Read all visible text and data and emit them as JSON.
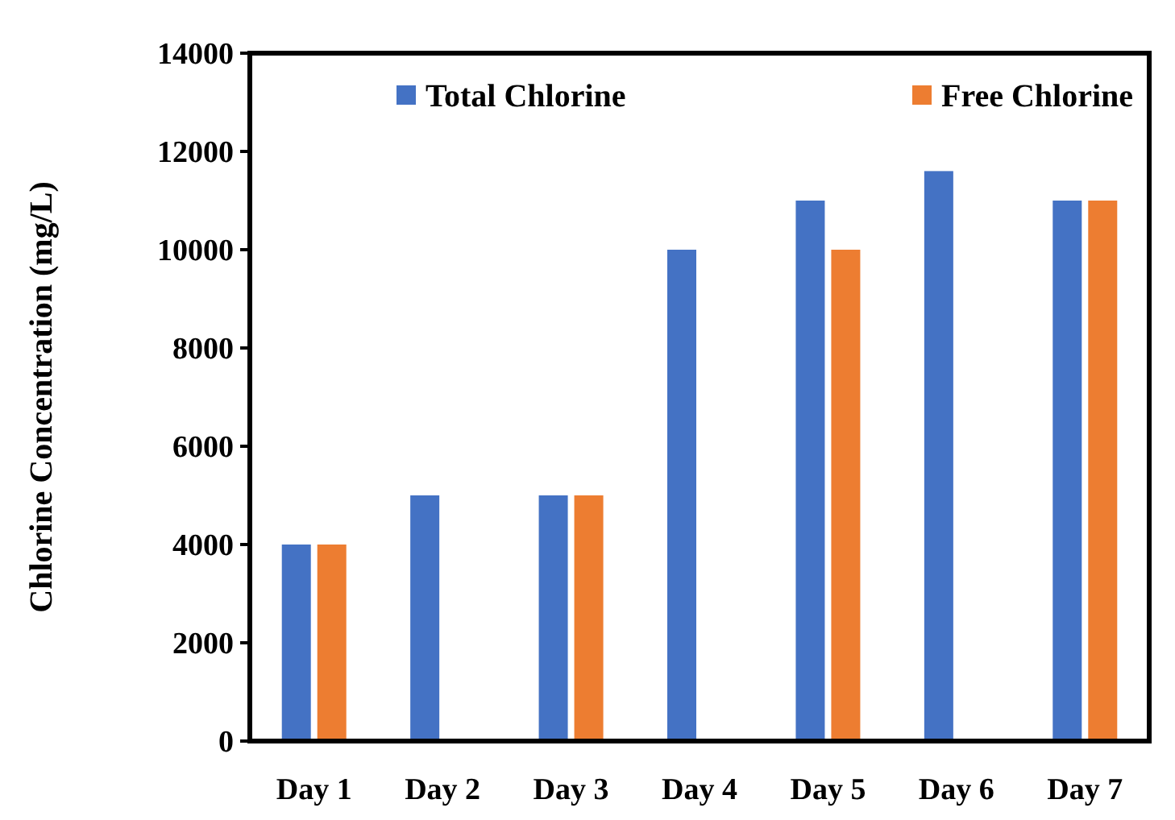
{
  "chart_data": {
    "type": "bar",
    "ylabel": "Chlorine Concentration (mg/L)",
    "categories": [
      "Day 1",
      "Day 2",
      "Day 3",
      "Day 4",
      "Day 5",
      "Day 6",
      "Day 7"
    ],
    "series": [
      {
        "name": "Total Chlorine",
        "color": "#4472c4",
        "values": [
          4000,
          5000,
          5000,
          10000,
          11000,
          11600,
          11000
        ]
      },
      {
        "name": "Free Chlorine",
        "color": "#ed7d31",
        "values": [
          4000,
          null,
          5000,
          null,
          10000,
          null,
          11000
        ]
      }
    ],
    "ylim": [
      0,
      14000
    ],
    "yticks": [
      0,
      2000,
      4000,
      6000,
      8000,
      10000,
      12000,
      14000
    ],
    "grid": false,
    "legend": "top"
  }
}
